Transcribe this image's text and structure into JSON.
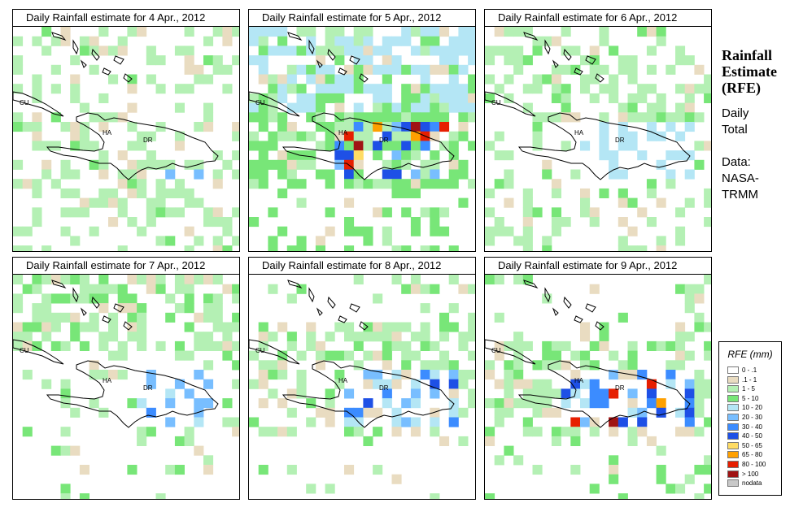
{
  "panels": [
    {
      "title": "Daily Rainfall estimate for  4 Apr., 2012",
      "day": 4
    },
    {
      "title": "Daily Rainfall estimate for  5 Apr., 2012",
      "day": 5
    },
    {
      "title": "Daily Rainfall estimate for  6 Apr., 2012",
      "day": 6
    },
    {
      "title": "Daily Rainfall estimate for  7 Apr., 2012",
      "day": 7
    },
    {
      "title": "Daily Rainfall estimate for  8 Apr., 2012",
      "day": 8
    },
    {
      "title": "Daily Rainfall estimate for  9 Apr., 2012",
      "day": 9
    }
  ],
  "map_labels": {
    "cuba": "CU",
    "haiti": "HA",
    "dominican_republic": "DR"
  },
  "side": {
    "title_line1": "Rainfall",
    "title_line2": "Estimate",
    "title_line3": "(RFE)",
    "daily": "Daily",
    "total": "Total",
    "data_label": "Data:",
    "source1": "NASA-",
    "source2": "TRMM"
  },
  "legend": {
    "title": "RFE (mm)",
    "items": [
      {
        "label": "0 - .1",
        "color": "#ffffff"
      },
      {
        "label": ".1 - 1",
        "color": "#e9dcc1"
      },
      {
        "label": "1 - 5",
        "color": "#b4f0b4"
      },
      {
        "label": "5 - 10",
        "color": "#78e678"
      },
      {
        "label": "10 - 20",
        "color": "#b4e6f5"
      },
      {
        "label": "20 - 30",
        "color": "#78beff"
      },
      {
        "label": "30 - 40",
        "color": "#3c8cff"
      },
      {
        "label": "40 - 50",
        "color": "#1e50e6"
      },
      {
        "label": "50 - 65",
        "color": "#ffdc64"
      },
      {
        "label": "65 - 80",
        "color": "#ffa000"
      },
      {
        "label": "80 - 100",
        "color": "#e61e00"
      },
      {
        "label": "> 100",
        "color": "#a01414"
      },
      {
        "label": "nodata",
        "color": "#c8c8c8"
      }
    ]
  }
}
